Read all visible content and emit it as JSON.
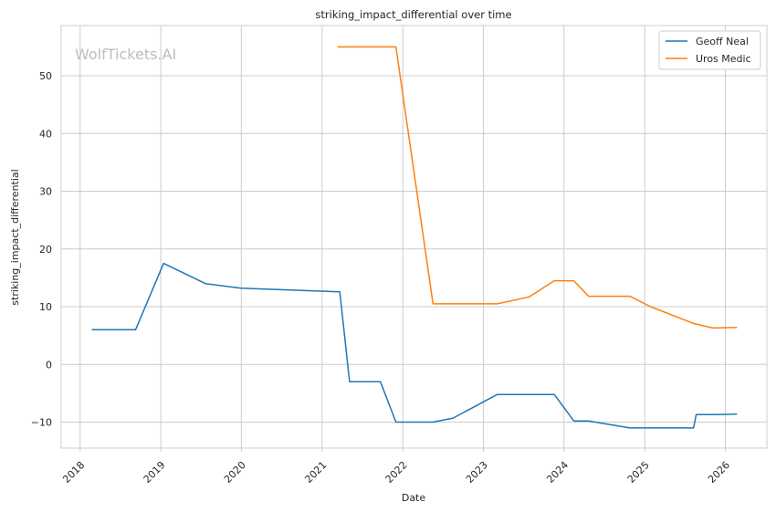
{
  "chart_data": {
    "type": "line",
    "title": "striking_impact_differential over time",
    "xlabel": "Date",
    "ylabel": "striking_impact_differential",
    "watermark": "WolfTickets.AI",
    "xlim": [
      "2017-10-07",
      "2026-07-08"
    ],
    "ylim": [
      -14.5,
      58.7
    ],
    "x_ticks": [
      "2018",
      "2019",
      "2020",
      "2021",
      "2022",
      "2023",
      "2024",
      "2025",
      "2026"
    ],
    "y_ticks": [
      -10,
      0,
      10,
      20,
      30,
      40,
      50
    ],
    "grid": true,
    "legend_position": "top-right",
    "series": [
      {
        "name": "Geoff Neal",
        "color": "#1f77b4",
        "points": [
          [
            "2018-02-23",
            6.0
          ],
          [
            "2018-09-09",
            6.0
          ],
          [
            "2019-01-14",
            17.5
          ],
          [
            "2019-07-22",
            14.0
          ],
          [
            "2019-12-30",
            13.2
          ],
          [
            "2021-03-05",
            12.6
          ],
          [
            "2021-03-22",
            12.6
          ],
          [
            "2021-05-05",
            -3.0
          ],
          [
            "2021-09-22",
            -3.0
          ],
          [
            "2021-12-01",
            -10.0
          ],
          [
            "2022-05-18",
            -10.0
          ],
          [
            "2022-08-17",
            -9.3
          ],
          [
            "2023-03-05",
            -5.2
          ],
          [
            "2023-11-18",
            -5.2
          ],
          [
            "2024-02-15",
            -9.8
          ],
          [
            "2024-04-21",
            -9.8
          ],
          [
            "2024-10-26",
            -11.0
          ],
          [
            "2025-08-10",
            -11.0
          ],
          [
            "2025-08-22",
            -8.7
          ],
          [
            "2025-11-20",
            -8.7
          ],
          [
            "2026-02-23",
            -8.6
          ]
        ]
      },
      {
        "name": "Uros Medic",
        "color": "#ff7f0e",
        "points": [
          [
            "2021-03-12",
            55.0
          ],
          [
            "2021-12-01",
            55.0
          ],
          [
            "2022-05-18",
            10.5
          ],
          [
            "2023-03-05",
            10.5
          ],
          [
            "2023-07-28",
            11.7
          ],
          [
            "2023-11-18",
            14.5
          ],
          [
            "2024-02-15",
            14.5
          ],
          [
            "2024-04-21",
            11.8
          ],
          [
            "2024-10-26",
            11.8
          ],
          [
            "2025-01-27",
            10.0
          ],
          [
            "2025-08-10",
            7.1
          ],
          [
            "2025-11-05",
            6.3
          ],
          [
            "2026-02-23",
            6.4
          ]
        ]
      }
    ]
  }
}
